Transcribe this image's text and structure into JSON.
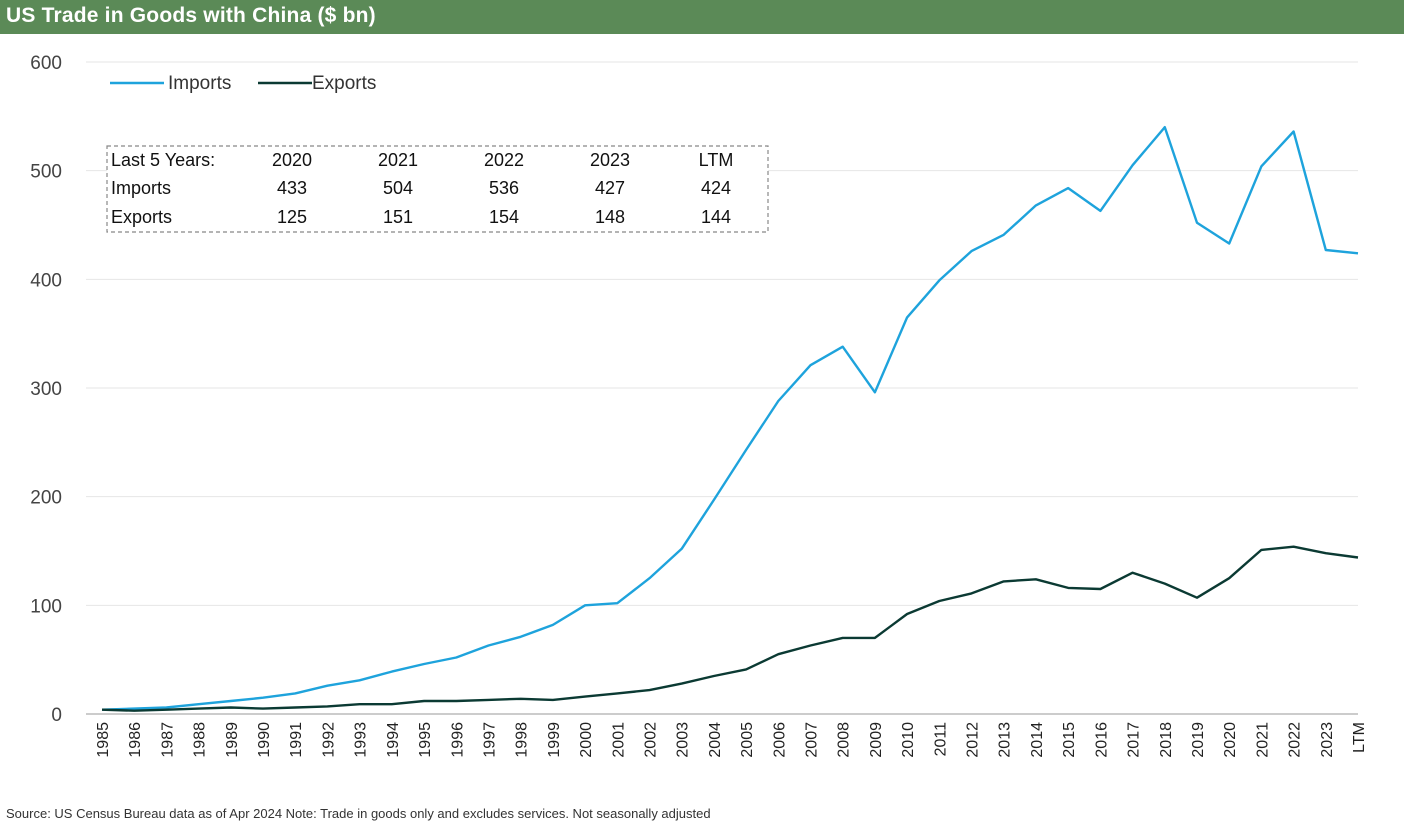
{
  "title": "US Trade in Goods with China ($ bn)",
  "source": "Source: US Census Bureau data as of Apr 2024 Note: Trade in goods only and excludes services. Not seasonally adjusted",
  "colors": {
    "title_bg": "#5b8a57",
    "imports": "#1ea3dc",
    "exports": "#0b3a33",
    "grid": "#e6e6e6"
  },
  "summary_table": {
    "header": [
      "Last 5 Years:",
      "2020",
      "2021",
      "2022",
      "2023",
      "LTM"
    ],
    "rows": [
      [
        "Imports",
        "433",
        "504",
        "536",
        "427",
        "424"
      ],
      [
        "Exports",
        "125",
        "151",
        "154",
        "148",
        "144"
      ]
    ]
  },
  "chart_data": {
    "type": "line",
    "x": [
      "1985",
      "1986",
      "1987",
      "1988",
      "1989",
      "1990",
      "1991",
      "1992",
      "1993",
      "1994",
      "1995",
      "1996",
      "1997",
      "1998",
      "1999",
      "2000",
      "2001",
      "2002",
      "2003",
      "2004",
      "2005",
      "2006",
      "2007",
      "2008",
      "2009",
      "2010",
      "2011",
      "2012",
      "2013",
      "2014",
      "2015",
      "2016",
      "2017",
      "2018",
      "2019",
      "2020",
      "2021",
      "2022",
      "2023",
      "LTM"
    ],
    "series": [
      {
        "name": "Imports",
        "values": [
          4,
          5,
          6,
          9,
          12,
          15,
          19,
          26,
          31,
          39,
          46,
          52,
          63,
          71,
          82,
          100,
          102,
          125,
          152,
          197,
          243,
          288,
          321,
          338,
          296,
          365,
          399,
          426,
          441,
          468,
          484,
          463,
          505,
          540,
          452,
          433,
          504,
          536,
          427,
          424
        ]
      },
      {
        "name": "Exports",
        "values": [
          4,
          3,
          4,
          5,
          6,
          5,
          6,
          7,
          9,
          9,
          12,
          12,
          13,
          14,
          13,
          16,
          19,
          22,
          28,
          35,
          41,
          55,
          63,
          70,
          70,
          92,
          104,
          111,
          122,
          124,
          116,
          115,
          130,
          120,
          107,
          125,
          151,
          154,
          148,
          144
        ]
      }
    ],
    "ylim": [
      0,
      600
    ],
    "yticks": [
      0,
      100,
      200,
      300,
      400,
      500,
      600
    ],
    "grid": true,
    "legend_position": "top-left"
  }
}
